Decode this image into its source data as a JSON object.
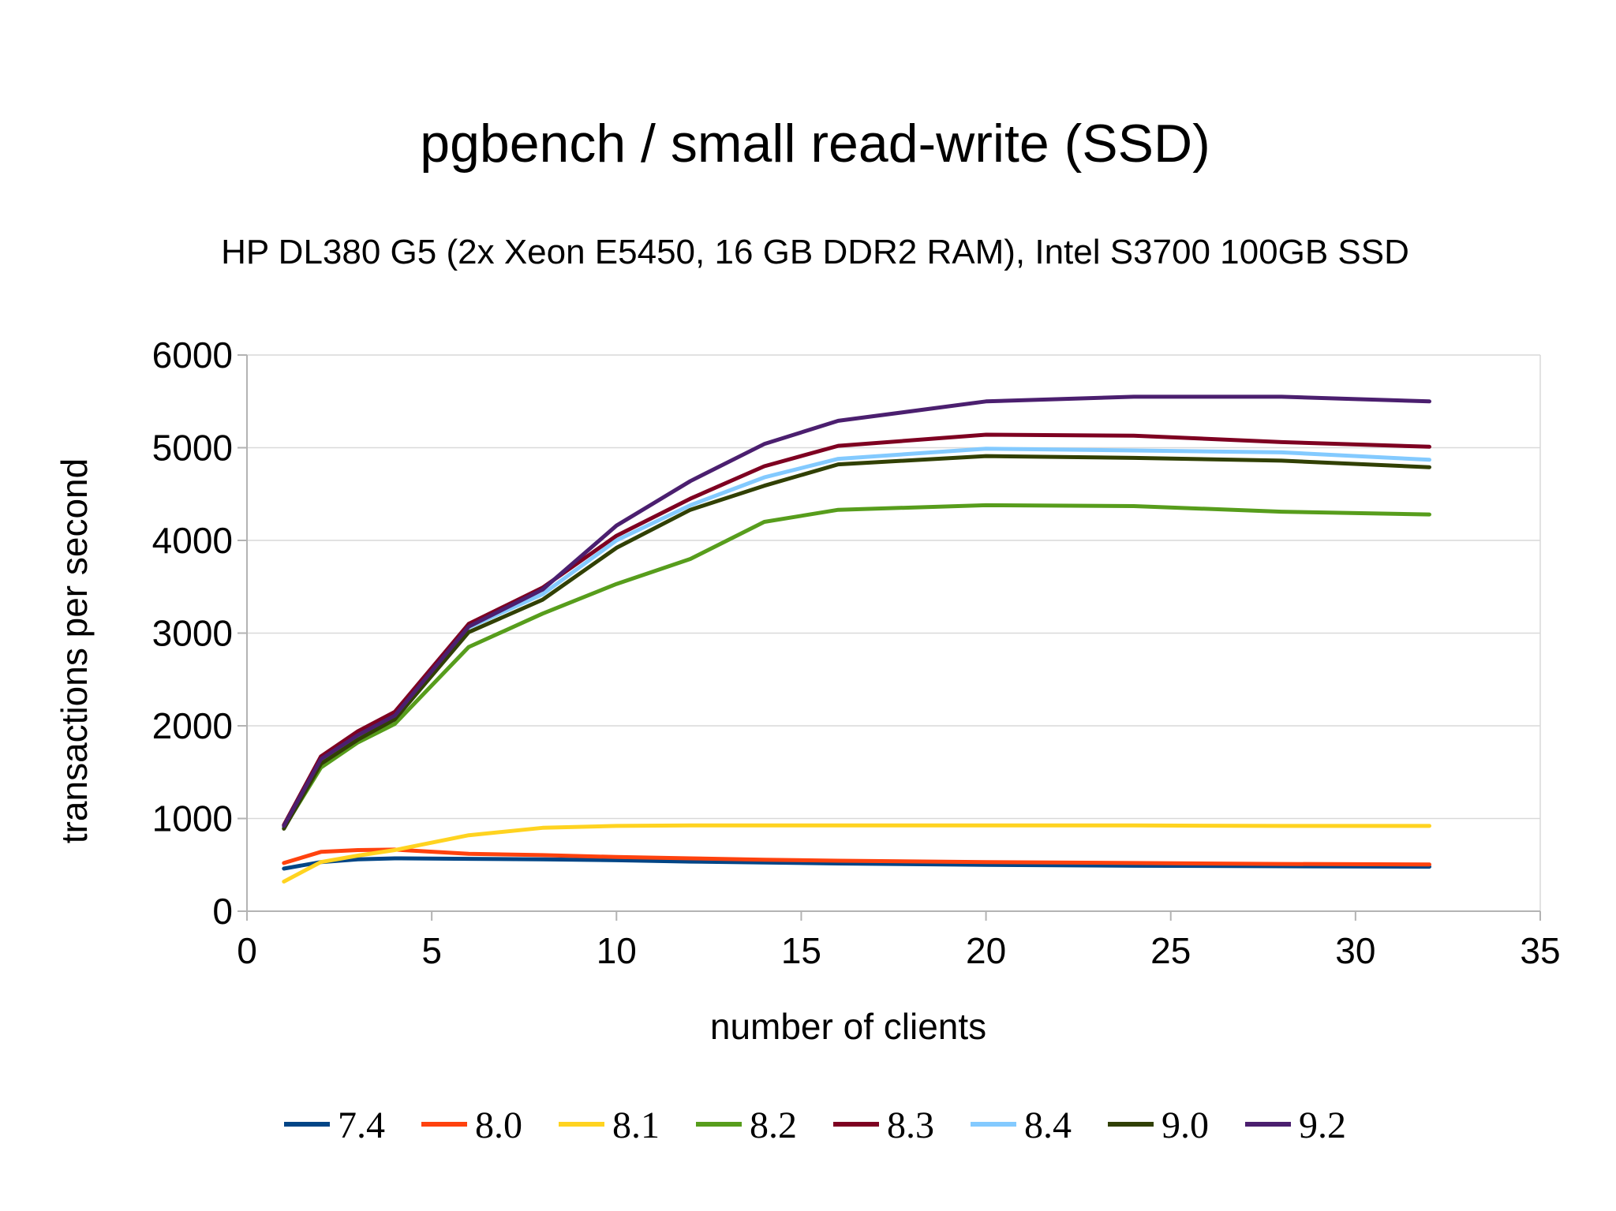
{
  "chart_data": {
    "type": "line",
    "title": "pgbench / small read-write (SSD)",
    "subtitle": "HP DL380 G5 (2x Xeon E5450, 16 GB DDR2 RAM), Intel S3700 100GB SSD",
    "xlabel": "number of clients",
    "ylabel": "transactions per second",
    "xlim": [
      0,
      35
    ],
    "ylim": [
      0,
      6000
    ],
    "xticks": [
      0,
      5,
      10,
      15,
      20,
      25,
      30,
      35
    ],
    "yticks": [
      0,
      1000,
      2000,
      3000,
      4000,
      5000,
      6000
    ],
    "grid": true,
    "legend_position": "bottom",
    "x": [
      1,
      2,
      3,
      4,
      6,
      8,
      10,
      12,
      14,
      16,
      20,
      24,
      28,
      32
    ],
    "series": [
      {
        "name": "7.4",
        "color": "#004586",
        "values": [
          460,
          530,
          560,
          570,
          565,
          560,
          550,
          535,
          525,
          515,
          500,
          490,
          485,
          480
        ]
      },
      {
        "name": "8.0",
        "color": "#ff420e",
        "values": [
          520,
          640,
          660,
          665,
          620,
          605,
          585,
          570,
          555,
          545,
          530,
          520,
          510,
          505
        ]
      },
      {
        "name": "8.1",
        "color": "#ffd320",
        "values": [
          320,
          530,
          600,
          660,
          820,
          900,
          920,
          925,
          925,
          925,
          925,
          925,
          920,
          920
        ]
      },
      {
        "name": "8.2",
        "color": "#579d1c",
        "values": [
          900,
          1550,
          1820,
          2020,
          2850,
          3210,
          3530,
          3800,
          4200,
          4330,
          4380,
          4370,
          4310,
          4280
        ]
      },
      {
        "name": "8.3",
        "color": "#7e0021",
        "values": [
          930,
          1670,
          1940,
          2150,
          3100,
          3490,
          4050,
          4450,
          4800,
          5020,
          5140,
          5130,
          5060,
          5010
        ]
      },
      {
        "name": "8.4",
        "color": "#83caff",
        "values": [
          900,
          1620,
          1880,
          2080,
          3060,
          3420,
          4000,
          4380,
          4680,
          4880,
          4990,
          4970,
          4950,
          4870
        ]
      },
      {
        "name": "9.0",
        "color": "#314004",
        "values": [
          890,
          1590,
          1850,
          2070,
          3010,
          3360,
          3920,
          4330,
          4590,
          4820,
          4910,
          4890,
          4860,
          4790
        ]
      },
      {
        "name": "9.2",
        "color": "#4b1f6f",
        "values": [
          920,
          1640,
          1900,
          2110,
          3070,
          3470,
          4160,
          4640,
          5040,
          5290,
          5500,
          5550,
          5550,
          5500
        ]
      }
    ]
  }
}
